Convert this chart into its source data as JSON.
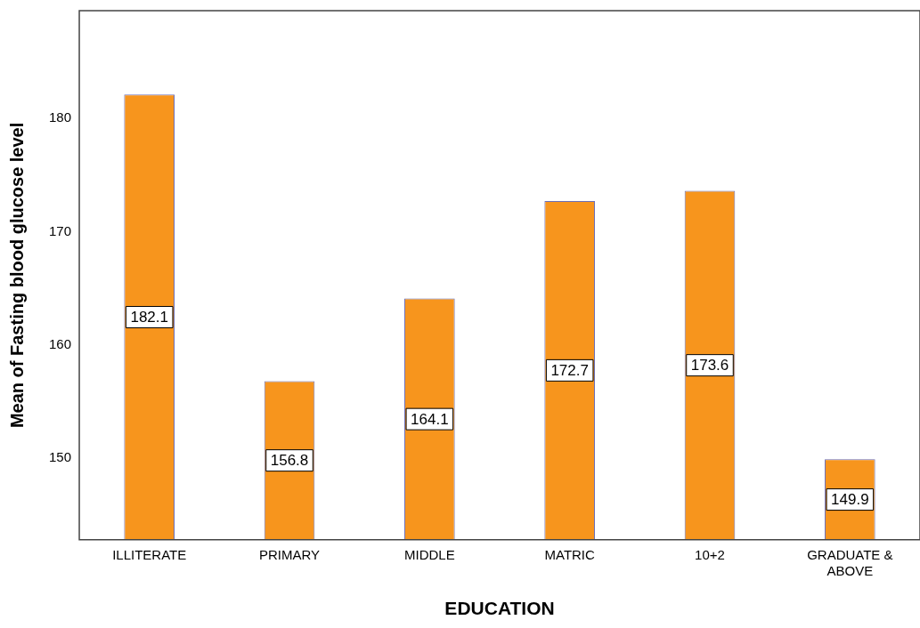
{
  "chart_data": {
    "type": "bar",
    "xlabel": "EDUCATION",
    "ylabel": "Mean of Fasting blood glucose level",
    "categories": [
      "ILLITERATE",
      "PRIMARY",
      "MIDDLE",
      "MATRIC",
      "10+2",
      "GRADUATE & ABOVE"
    ],
    "values": [
      182.1,
      156.8,
      164.1,
      172.7,
      173.6,
      149.9
    ],
    "color": "#f7951d",
    "ylim": [
      142.8,
      189.5
    ],
    "yticks": [
      150,
      160,
      170,
      180
    ],
    "grid": false,
    "legend": false,
    "data_labels": true
  }
}
